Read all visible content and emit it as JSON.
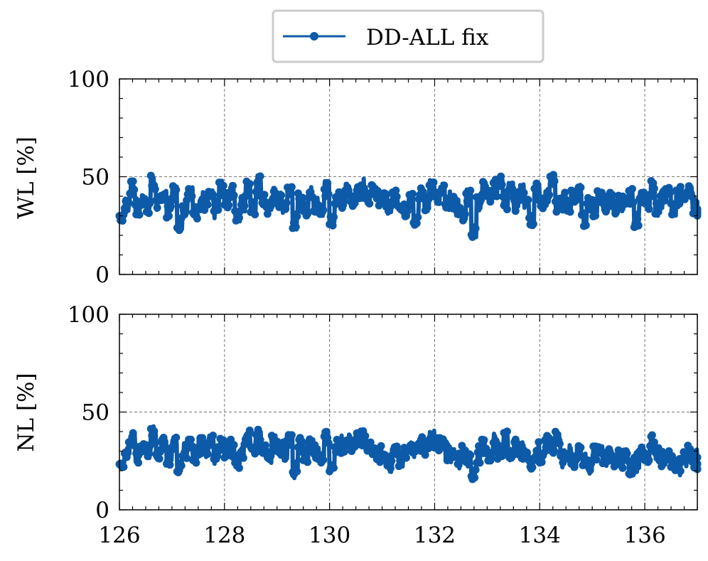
{
  "chart_data": [
    {
      "type": "line",
      "ylabel": "WL [%]",
      "xlim": [
        126,
        137
      ],
      "ylim": [
        0,
        100
      ],
      "xticks": [
        126,
        128,
        130,
        132,
        134,
        136
      ],
      "yticks": [
        0,
        50,
        100
      ],
      "grid": true,
      "series": [
        {
          "name": "DD-ALL fix",
          "color": "#0d5aa8",
          "x": [
            126.0,
            126.1,
            126.2,
            126.3,
            126.4,
            126.5,
            126.6,
            126.7,
            126.8,
            126.9,
            127.0,
            127.1,
            127.2,
            127.3,
            127.4,
            127.5,
            127.6,
            127.7,
            127.8,
            127.9,
            128.0,
            128.1,
            128.2,
            128.3,
            128.4,
            128.5,
            128.6,
            128.7,
            128.8,
            128.9,
            129.0,
            129.1,
            129.2,
            129.3,
            129.4,
            129.5,
            129.6,
            129.7,
            129.8,
            129.9,
            130.0,
            130.1,
            130.2,
            130.3,
            130.4,
            130.5,
            130.6,
            130.7,
            130.8,
            130.9,
            131.0,
            131.1,
            131.2,
            131.3,
            131.4,
            131.5,
            131.6,
            131.7,
            131.8,
            131.9,
            132.0,
            132.1,
            132.2,
            132.3,
            132.4,
            132.5,
            132.6,
            132.7,
            132.8,
            132.9,
            133.0,
            133.1,
            133.2,
            133.3,
            133.4,
            133.5,
            133.6,
            133.7,
            133.8,
            133.9,
            134.0,
            134.1,
            134.2,
            134.3,
            134.4,
            134.5,
            134.6,
            134.7,
            134.8,
            134.9,
            135.0,
            135.1,
            135.2,
            135.3,
            135.4,
            135.5,
            135.6,
            135.7,
            135.8,
            135.9,
            136.0,
            136.1,
            136.2,
            136.3,
            136.4,
            136.5,
            136.6,
            136.7,
            136.8,
            136.9,
            137.0
          ],
          "y": [
            30,
            36,
            44,
            34,
            38,
            35,
            46,
            36,
            40,
            34,
            42,
            26,
            35,
            43,
            32,
            38,
            36,
            40,
            33,
            44,
            38,
            42,
            30,
            36,
            44,
            34,
            46,
            38,
            34,
            40,
            38,
            36,
            44,
            27,
            38,
            34,
            42,
            36,
            32,
            44,
            28,
            40,
            36,
            44,
            38,
            42,
            44,
            40,
            43,
            38,
            38,
            34,
            40,
            36,
            34,
            38,
            28,
            40,
            36,
            44,
            40,
            44,
            38,
            36,
            34,
            30,
            40,
            22,
            36,
            44,
            40,
            44,
            48,
            38,
            44,
            36,
            42,
            38,
            28,
            42,
            36,
            40,
            48,
            36,
            38,
            34,
            40,
            42,
            28,
            36,
            34,
            40,
            36,
            38,
            34,
            36,
            38,
            40,
            28,
            38,
            36,
            44,
            34,
            38,
            42,
            34,
            40,
            38,
            44,
            36,
            34
          ],
          "y_spread": [
            3,
            5,
            4,
            5,
            3,
            4,
            5,
            4,
            3,
            5,
            4,
            4,
            5,
            3,
            4,
            5,
            4,
            3,
            5,
            4,
            4,
            5,
            3,
            4,
            5,
            4,
            5,
            3,
            4,
            5,
            4,
            5,
            3,
            4,
            5,
            4,
            3,
            5,
            4,
            5,
            3,
            4,
            5,
            4,
            3,
            4,
            5,
            4,
            3,
            5,
            4,
            5,
            3,
            4,
            5,
            4,
            3,
            5,
            4,
            5,
            4,
            3,
            5,
            4,
            5,
            3,
            4,
            4,
            5,
            4,
            3,
            5,
            4,
            5,
            3,
            4,
            5,
            4,
            3,
            5,
            4,
            5,
            3,
            4,
            5,
            4,
            3,
            5,
            4,
            4,
            5,
            3,
            4,
            5,
            4,
            5,
            3,
            4,
            5,
            4,
            3,
            5,
            4,
            5,
            3,
            4,
            5,
            4,
            3,
            5,
            4
          ]
        }
      ]
    },
    {
      "type": "line",
      "ylabel": "NL [%]",
      "xlim": [
        126,
        137
      ],
      "ylim": [
        0,
        100
      ],
      "xticks": [
        126,
        128,
        130,
        132,
        134,
        136
      ],
      "yticks": [
        0,
        50,
        100
      ],
      "grid": true,
      "series": [
        {
          "name": "DD-ALL fix",
          "color": "#0d5aa8",
          "x": [
            126.0,
            126.1,
            126.2,
            126.3,
            126.4,
            126.5,
            126.6,
            126.7,
            126.8,
            126.9,
            127.0,
            127.1,
            127.2,
            127.3,
            127.4,
            127.5,
            127.6,
            127.7,
            127.8,
            127.9,
            128.0,
            128.1,
            128.2,
            128.3,
            128.4,
            128.5,
            128.6,
            128.7,
            128.8,
            128.9,
            129.0,
            129.1,
            129.2,
            129.3,
            129.4,
            129.5,
            129.6,
            129.7,
            129.8,
            129.9,
            130.0,
            130.1,
            130.2,
            130.3,
            130.4,
            130.5,
            130.6,
            130.7,
            130.8,
            130.9,
            131.0,
            131.1,
            131.2,
            131.3,
            131.4,
            131.5,
            131.6,
            131.7,
            131.8,
            131.9,
            132.0,
            132.1,
            132.2,
            132.3,
            132.4,
            132.5,
            132.6,
            132.7,
            132.8,
            132.9,
            133.0,
            133.1,
            133.2,
            133.3,
            133.4,
            133.5,
            133.6,
            133.7,
            133.8,
            133.9,
            134.0,
            134.1,
            134.2,
            134.3,
            134.4,
            134.5,
            134.6,
            134.7,
            134.8,
            134.9,
            135.0,
            135.1,
            135.2,
            135.3,
            135.4,
            135.5,
            135.6,
            135.7,
            135.8,
            135.9,
            136.0,
            136.1,
            136.2,
            136.3,
            136.4,
            136.5,
            136.6,
            136.7,
            136.8,
            136.9,
            137.0
          ],
          "y": [
            22,
            30,
            36,
            28,
            32,
            30,
            38,
            30,
            34,
            28,
            34,
            22,
            30,
            34,
            28,
            32,
            30,
            36,
            28,
            34,
            30,
            32,
            24,
            30,
            38,
            32,
            36,
            30,
            28,
            34,
            32,
            30,
            36,
            20,
            32,
            28,
            34,
            30,
            26,
            36,
            22,
            32,
            34,
            36,
            32,
            36,
            36,
            34,
            30,
            28,
            26,
            24,
            30,
            26,
            28,
            32,
            30,
            34,
            32,
            36,
            34,
            34,
            30,
            28,
            26,
            30,
            26,
            18,
            28,
            32,
            28,
            34,
            30,
            36,
            28,
            32,
            30,
            28,
            24,
            30,
            28,
            34,
            32,
            36,
            26,
            30,
            24,
            28,
            26,
            22,
            28,
            30,
            26,
            28,
            24,
            26,
            28,
            22,
            24,
            28,
            26,
            34,
            28,
            26,
            28,
            24,
            22,
            26,
            30,
            26,
            24
          ],
          "y_spread": [
            3,
            5,
            4,
            5,
            3,
            4,
            5,
            4,
            3,
            5,
            4,
            4,
            5,
            3,
            4,
            5,
            4,
            3,
            5,
            4,
            4,
            5,
            3,
            4,
            5,
            4,
            5,
            3,
            4,
            5,
            4,
            5,
            3,
            4,
            5,
            4,
            3,
            5,
            4,
            5,
            3,
            4,
            5,
            4,
            3,
            4,
            5,
            4,
            3,
            5,
            4,
            5,
            3,
            4,
            5,
            4,
            3,
            5,
            4,
            5,
            4,
            3,
            5,
            4,
            5,
            3,
            4,
            4,
            5,
            4,
            3,
            5,
            4,
            5,
            3,
            4,
            5,
            4,
            3,
            5,
            4,
            5,
            3,
            4,
            5,
            4,
            3,
            5,
            4,
            4,
            5,
            3,
            4,
            5,
            4,
            5,
            3,
            4,
            5,
            4,
            3,
            5,
            4,
            5,
            3,
            4,
            5,
            4,
            3,
            5,
            4
          ]
        }
      ]
    }
  ],
  "legend": {
    "label": "DD-ALL fix",
    "placement": "top-center"
  },
  "colors": {
    "series": "#0d5aa8",
    "grid": "#777777",
    "axes": "#000000"
  }
}
